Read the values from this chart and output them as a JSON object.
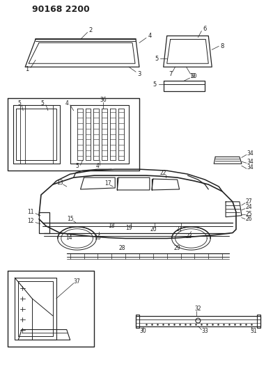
{
  "title": "90168 2200",
  "bg_color": "#ffffff",
  "line_color": "#222222",
  "fig_width": 3.92,
  "fig_height": 5.33,
  "dpi": 100
}
